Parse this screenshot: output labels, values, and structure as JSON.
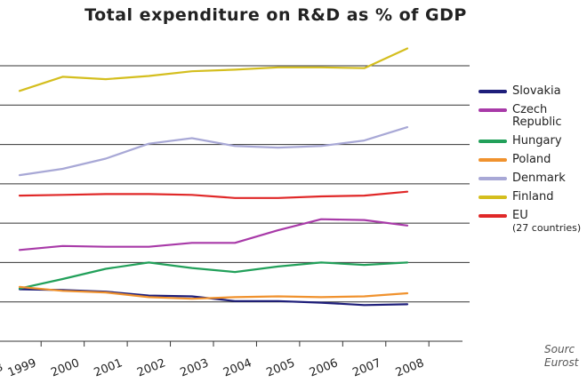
{
  "chart_data": {
    "type": "line",
    "title": "Total expenditure on R&D as % of GDP",
    "x": [
      1999,
      2000,
      2001,
      2002,
      2003,
      2004,
      2005,
      2006,
      2007,
      2008
    ],
    "x_tick_labels": [
      "8",
      "1999",
      "2000",
      "2001",
      "2002",
      "2003",
      "2004",
      "2005",
      "2006",
      "2007",
      "2008"
    ],
    "xlabel": "",
    "ylabel": "",
    "ylim": [
      0,
      3.5
    ],
    "grid": true,
    "legend_position": "right",
    "series": [
      {
        "name": "Slovakia",
        "color": "#1e1e7a",
        "values": [
          0.66,
          0.65,
          0.63,
          0.58,
          0.57,
          0.51,
          0.51,
          0.49,
          0.46,
          0.47
        ]
      },
      {
        "name": "Czech Republic",
        "color": "#a83aa8",
        "values": [
          1.16,
          1.21,
          1.2,
          1.2,
          1.25,
          1.25,
          1.41,
          1.55,
          1.54,
          1.47
        ]
      },
      {
        "name": "Hungary",
        "color": "#22a05a",
        "values": [
          0.67,
          0.79,
          0.92,
          1.0,
          0.93,
          0.88,
          0.95,
          1.0,
          0.97,
          1.0
        ]
      },
      {
        "name": "Poland",
        "color": "#f0922e",
        "values": [
          0.69,
          0.64,
          0.62,
          0.56,
          0.54,
          0.56,
          0.57,
          0.56,
          0.57,
          0.61
        ]
      },
      {
        "name": "Denmark",
        "color": "#a8a8d6",
        "values": [
          2.11,
          2.19,
          2.32,
          2.51,
          2.58,
          2.48,
          2.46,
          2.48,
          2.55,
          2.72
        ]
      },
      {
        "name": "Finland",
        "color": "#d4be1e",
        "values": [
          3.18,
          3.36,
          3.33,
          3.37,
          3.43,
          3.45,
          3.48,
          3.48,
          3.47,
          3.72
        ]
      },
      {
        "name": "EU",
        "note": "(27 countries)",
        "color": "#e02828",
        "values": [
          1.85,
          1.86,
          1.87,
          1.87,
          1.86,
          1.82,
          1.82,
          1.84,
          1.85,
          1.9
        ]
      }
    ]
  },
  "source": {
    "line1": "Sourc",
    "line2": "Eurost"
  }
}
